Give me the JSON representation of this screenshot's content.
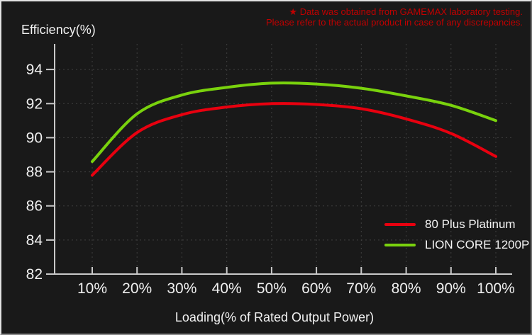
{
  "disclaimer": {
    "line1": "★ Data was obtained from GAMEMAX laboratory testing.",
    "line2": "Please refer to the actual product in case of any discrepancies.",
    "color": "#c00000"
  },
  "chart_data": {
    "type": "line",
    "title": "",
    "ylabel": "Efficiency(%)",
    "xlabel": "Loading(% of Rated Output Power)",
    "categories": [
      "10%",
      "20%",
      "30%",
      "40%",
      "50%",
      "60%",
      "70%",
      "80%",
      "90%",
      "100%"
    ],
    "x_values_percent": [
      10,
      20,
      30,
      40,
      50,
      60,
      70,
      80,
      90,
      100
    ],
    "series": [
      {
        "name": "80 Plus Platinum",
        "color": "#e8000f",
        "values": [
          87.8,
          90.3,
          91.35,
          91.8,
          92.0,
          91.95,
          91.7,
          91.1,
          90.25,
          88.9
        ]
      },
      {
        "name": "LION CORE 1200P",
        "color": "#79d20d",
        "values": [
          88.6,
          91.4,
          92.5,
          92.95,
          93.2,
          93.15,
          92.9,
          92.45,
          91.9,
          91.0
        ]
      }
    ],
    "yticks": [
      82,
      84,
      86,
      88,
      90,
      92,
      94
    ],
    "ylim": [
      82,
      95.5
    ],
    "grid": "dotted",
    "legend_position": "right-middle"
  },
  "colors": {
    "background": "#191919",
    "axis": "#c9c9c9",
    "grid": "#404040",
    "text": "#f2f2f2",
    "disclaimer_red": "#c00000"
  }
}
